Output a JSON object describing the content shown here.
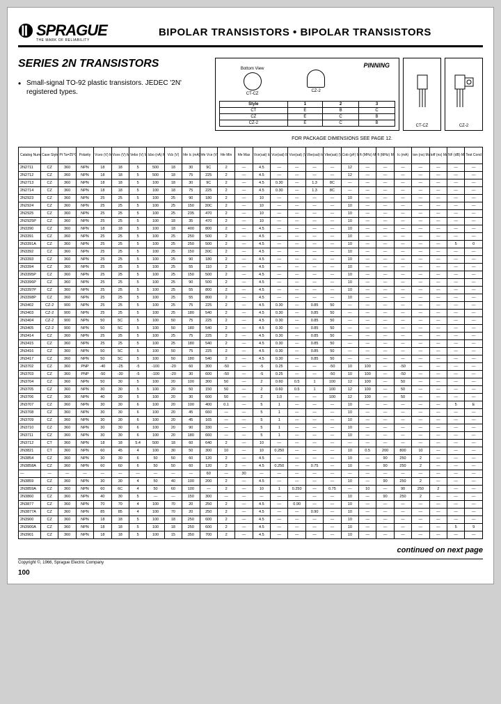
{
  "header": {
    "brand": "SPRAGUE",
    "tagline": "THE MARK OF RELIABILITY",
    "title": "BIPOLAR TRANSISTORS • BIPOLAR TRANSISTORS"
  },
  "series": {
    "title": "SERIES 2N TRANSISTORS",
    "description": "Small-signal TO-92 plastic transistors. JEDEC '2N' registered types."
  },
  "pinning": {
    "title": "PINNING",
    "bottom_view": "Bottom View",
    "styles": [
      "CT-CZ",
      "CZ-2"
    ],
    "table_header": [
      "Style",
      "1",
      "2",
      "3"
    ],
    "table_rows": [
      [
        "CT",
        "E",
        "B",
        "C"
      ],
      [
        "CZ",
        "E",
        "C",
        "B"
      ],
      [
        "CZ-2",
        "E",
        "C",
        "B"
      ]
    ],
    "pkg_labels": [
      "CT-CZ",
      "CZ-2"
    ]
  },
  "footnote": "FOR PACKAGE DIMENSIONS SEE PAGE 12.",
  "columns": [
    "Catalog Number",
    "Case Style",
    "Pt Ta=25°C (mW)",
    "Polarity",
    "Vceo (V) Min",
    "Vces (V) Min",
    "Vebo (V) Min",
    "Icbo (nA) Max",
    "Vcb (V)",
    "hfe Ic (mA)",
    "hfe Vce (V)",
    "hfe Min",
    "hfe Max",
    "Vce(sat) Ic (mA)",
    "Vce(sat) Ib (mA)",
    "Vce(sat) (V) Max",
    "Vbe(sat) Ic (mA)",
    "Vbe(sat) (V) Max",
    "Cob (pF) Max",
    "ft (MHz) Min",
    "ft (MHz) Max",
    "Ic (mA)",
    "ton (ns) Max",
    "toff (ns) Max",
    "NF (dB) Max",
    "Test Cond (letter)"
  ],
  "rows": [
    [
      "2N2711",
      "CZ",
      "360",
      "NPN",
      "18",
      "18",
      "5",
      "500",
      "18",
      "30",
      "9C",
      "2",
      "—",
      "4.5",
      "—",
      "—",
      "—",
      "—",
      "12",
      "—",
      "—",
      "—",
      "—",
      "—",
      "—",
      "—"
    ],
    [
      "2N2712",
      "CZ",
      "360",
      "NPN",
      "18",
      "18",
      "5",
      "500",
      "18",
      "75",
      "225",
      "2",
      "—",
      "4.5",
      "—",
      "—",
      "—",
      "—",
      "12",
      "—",
      "—",
      "—",
      "—",
      "—",
      "—",
      "—"
    ],
    [
      "2N2713",
      "CZ",
      "360",
      "NPN",
      "18",
      "18",
      "5",
      "100",
      "18",
      "30",
      "9C",
      "2",
      "—",
      "4.5",
      "0.30",
      "—",
      "1.3",
      "8C",
      "—",
      "—",
      "—",
      "—",
      "—",
      "—",
      "—",
      "—"
    ],
    [
      "2N2714",
      "CZ",
      "360",
      "NPN",
      "18",
      "18",
      "5",
      "100",
      "18",
      "75",
      "225",
      "2",
      "—",
      "4.5",
      "0.30",
      "—",
      "1.3",
      "8C",
      "—",
      "—",
      "—",
      "—",
      "—",
      "—",
      "—",
      "—"
    ],
    [
      "2N2923",
      "CZ",
      "360",
      "NPN",
      "25",
      "25",
      "5",
      "100",
      "25",
      "90",
      "180",
      "2",
      "—",
      "10",
      "—",
      "—",
      "—",
      "—",
      "10",
      "—",
      "—",
      "—",
      "—",
      "—",
      "—",
      "—"
    ],
    [
      "2N2924",
      "CZ",
      "360",
      "NPN",
      "25",
      "25",
      "5",
      "100",
      "25",
      "150",
      "30C",
      "2",
      "—",
      "10",
      "—",
      "—",
      "—",
      "—",
      "10",
      "—",
      "—",
      "—",
      "—",
      "—",
      "—",
      "—"
    ],
    [
      "2N2925",
      "CZ",
      "360",
      "NPN",
      "25",
      "25",
      "5",
      "100",
      "25",
      "235",
      "470",
      "2",
      "—",
      "10",
      "—",
      "—",
      "—",
      "—",
      "10",
      "—",
      "—",
      "—",
      "—",
      "—",
      "—",
      "—"
    ],
    [
      "2N2925P",
      "CZ",
      "360",
      "NPN",
      "25",
      "25",
      "5",
      "100",
      "18",
      "35",
      "470",
      "2",
      "—",
      "10",
      "—",
      "—",
      "—",
      "—",
      "10",
      "—",
      "—",
      "—",
      "—",
      "—",
      "—",
      "—"
    ],
    [
      "2N3390",
      "CZ",
      "360",
      "NPN",
      "18",
      "18",
      "5",
      "100",
      "18",
      "400",
      "800",
      "2",
      "—",
      "4.5",
      "—",
      "—",
      "—",
      "—",
      "10",
      "—",
      "—",
      "—",
      "—",
      "—",
      "—",
      "—"
    ],
    [
      "2N3391",
      "CZ",
      "360",
      "NPN",
      "25",
      "25",
      "5",
      "100",
      "25",
      "250",
      "500",
      "2",
      "—",
      "4.5",
      "—",
      "—",
      "—",
      "—",
      "10",
      "—",
      "—",
      "—",
      "—",
      "—",
      "—",
      "—"
    ],
    [
      "2N3391A",
      "CZ",
      "360",
      "NPN",
      "25",
      "25",
      "5",
      "100",
      "25",
      "250",
      "500",
      "2",
      "—",
      "4.5",
      "—",
      "—",
      "—",
      "—",
      "10",
      "—",
      "—",
      "—",
      "—",
      "—",
      "5",
      "0"
    ],
    [
      "2N3392",
      "CZ",
      "360",
      "NPN",
      "25",
      "25",
      "5",
      "100",
      "25",
      "150",
      "30C",
      "2",
      "—",
      "4.5",
      "—",
      "—",
      "—",
      "—",
      "10",
      "—",
      "—",
      "—",
      "—",
      "—",
      "—",
      "—"
    ],
    [
      "2N3393",
      "CZ",
      "360",
      "NPN",
      "25",
      "25",
      "5",
      "100",
      "25",
      "90",
      "180",
      "2",
      "—",
      "4.5",
      "—",
      "—",
      "—",
      "—",
      "10",
      "—",
      "—",
      "—",
      "—",
      "—",
      "—",
      "—"
    ],
    [
      "2N3394",
      "CZ",
      "360",
      "NPN",
      "25",
      "25",
      "5",
      "100",
      "25",
      "55",
      "110",
      "2",
      "—",
      "4.5",
      "—",
      "—",
      "—",
      "—",
      "10",
      "—",
      "—",
      "—",
      "—",
      "—",
      "—",
      "—"
    ],
    [
      "2N3395P",
      "CZ",
      "360",
      "NPN",
      "25",
      "25",
      "5",
      "100",
      "25",
      "150",
      "500",
      "2",
      "—",
      "4.5",
      "—",
      "—",
      "—",
      "—",
      "10",
      "—",
      "—",
      "—",
      "—",
      "—",
      "—",
      "—"
    ],
    [
      "2N3396P",
      "CZ",
      "360",
      "NPN",
      "25",
      "25",
      "5",
      "100",
      "25",
      "90",
      "500",
      "2",
      "—",
      "4.5",
      "—",
      "—",
      "—",
      "—",
      "10",
      "—",
      "—",
      "—",
      "—",
      "—",
      "—",
      "—"
    ],
    [
      "2N3397P",
      "CZ",
      "360",
      "NPN",
      "25",
      "25",
      "5",
      "100",
      "25",
      "55",
      "800",
      "2",
      "—",
      "4.5",
      "—",
      "—",
      "—",
      "—",
      "10",
      "—",
      "—",
      "—",
      "—",
      "—",
      "—",
      "—"
    ],
    [
      "2N3398P",
      "CZ",
      "360",
      "NPN",
      "25",
      "25",
      "5",
      "100",
      "25",
      "55",
      "800",
      "2",
      "—",
      "4.5",
      "—",
      "—",
      "—",
      "—",
      "10",
      "—",
      "—",
      "—",
      "—",
      "—",
      "—",
      "—"
    ],
    [
      "2N3402",
      "CZ-2",
      "900",
      "NPN",
      "25",
      "25",
      "5",
      "100",
      "25",
      "75",
      "225",
      "2",
      "—",
      "4.5",
      "0.30",
      "—",
      "0.85",
      "50",
      "—",
      "—",
      "—",
      "—",
      "—",
      "—",
      "—",
      "—"
    ],
    [
      "2N3403",
      "CZ-2",
      "900",
      "NPN",
      "25",
      "25",
      "5",
      "100",
      "25",
      "180",
      "540",
      "2",
      "—",
      "4.5",
      "0.30",
      "—",
      "0.85",
      "50",
      "—",
      "—",
      "—",
      "—",
      "—",
      "—",
      "—",
      "—"
    ],
    [
      "2N3404",
      "CZ-2",
      "900",
      "NPN",
      "50",
      "5C",
      "5",
      "100",
      "50",
      "75",
      "225",
      "2",
      "—",
      "4.5",
      "0.30",
      "—",
      "0.85",
      "50",
      "—",
      "—",
      "—",
      "—",
      "—",
      "—",
      "—",
      "—"
    ],
    [
      "2N3405",
      "CZ-2",
      "900",
      "NPN",
      "50",
      "5C",
      "5",
      "100",
      "50",
      "180",
      "540",
      "2",
      "—",
      "4.5",
      "0.30",
      "—",
      "0.85",
      "50",
      "—",
      "—",
      "—",
      "—",
      "—",
      "—",
      "—",
      "—"
    ],
    [
      "2N3414",
      "CZ",
      "360",
      "NPN",
      "25",
      "25",
      "5",
      "100",
      "25",
      "75",
      "225",
      "2",
      "—",
      "4.5",
      "0.30",
      "—",
      "0.85",
      "50",
      "—",
      "—",
      "—",
      "—",
      "—",
      "—",
      "—",
      "—"
    ],
    [
      "2N3415",
      "CZ",
      "360",
      "NPN",
      "25",
      "25",
      "5",
      "100",
      "25",
      "180",
      "540",
      "2",
      "—",
      "4.5",
      "0.30",
      "—",
      "0.85",
      "50",
      "—",
      "—",
      "—",
      "—",
      "—",
      "—",
      "—",
      "—"
    ],
    [
      "2N3416",
      "CZ",
      "360",
      "NPN",
      "50",
      "5C",
      "5",
      "100",
      "50",
      "75",
      "225",
      "2",
      "—",
      "4.5",
      "0.30",
      "—",
      "0.85",
      "50",
      "—",
      "—",
      "—",
      "—",
      "—",
      "—",
      "—",
      "—"
    ],
    [
      "2N3417",
      "CZ",
      "360",
      "NPN",
      "50",
      "5C",
      "5",
      "100",
      "50",
      "180",
      "540",
      "2",
      "—",
      "4.5",
      "0.30",
      "—",
      "0.85",
      "50",
      "—",
      "—",
      "—",
      "—",
      "—",
      "—",
      "—",
      "—"
    ],
    [
      "2N3702",
      "CZ",
      "360",
      "PNP",
      "-40",
      "-25",
      "-5",
      "-100",
      "-20",
      "60",
      "300",
      "-50",
      "—",
      "-5",
      "0.25",
      "—",
      "—",
      "-50",
      "10",
      "100",
      "—",
      "-50",
      "—",
      "—",
      "—",
      "—"
    ],
    [
      "2N3703",
      "CZ",
      "360",
      "PNP",
      "-50",
      "-30",
      "-5",
      "-100",
      "-20",
      "30",
      "600",
      "-50",
      "—",
      "-5",
      "0.25",
      "—",
      "—",
      "-50",
      "10",
      "100",
      "—",
      "-50",
      "—",
      "—",
      "—",
      "—"
    ],
    [
      "2N3704",
      "CZ",
      "360",
      "NPN",
      "50",
      "30",
      "5",
      "100",
      "20",
      "100",
      "300",
      "50",
      "—",
      "2",
      "0.60",
      "0.5",
      "1",
      "100",
      "12",
      "100",
      "—",
      "50",
      "—",
      "—",
      "—",
      "—"
    ],
    [
      "2N3705",
      "CZ",
      "360",
      "NPN",
      "30",
      "30",
      "5",
      "100",
      "20",
      "50",
      "150",
      "50",
      "—",
      "2",
      "0.60",
      "0.5",
      "1",
      "100",
      "12",
      "100",
      "—",
      "50",
      "—",
      "—",
      "—",
      "—"
    ],
    [
      "2N3706",
      "CZ",
      "360",
      "NPN",
      "40",
      "20",
      "5",
      "100",
      "20",
      "30",
      "600",
      "50",
      "—",
      "2",
      "1.0",
      "—",
      "—",
      "100",
      "12",
      "100",
      "—",
      "50",
      "—",
      "—",
      "—",
      "—"
    ],
    [
      "2N3707",
      "CZ",
      "360",
      "NPN",
      "30",
      "30",
      "6",
      "100",
      "20",
      "100",
      "400",
      "0.1",
      "—",
      "5",
      "1",
      "—",
      "—",
      "—",
      "10",
      "—",
      "—",
      "—",
      "—",
      "—",
      "5",
      "E"
    ],
    [
      "2N3708",
      "CZ",
      "360",
      "NPN",
      "30",
      "30",
      "6",
      "100",
      "20",
      "45",
      "660",
      "—",
      "—",
      "5",
      "1",
      "—",
      "—",
      "—",
      "10",
      "—",
      "—",
      "—",
      "—",
      "—",
      "—",
      "—"
    ],
    [
      "2N3709",
      "CZ",
      "360",
      "NPN",
      "30",
      "30",
      "6",
      "100",
      "20",
      "45",
      "165",
      "—",
      "—",
      "5",
      "1",
      "—",
      "—",
      "—",
      "10",
      "—",
      "—",
      "—",
      "—",
      "—",
      "—",
      "—"
    ],
    [
      "2N3710",
      "CZ",
      "360",
      "NPN",
      "30",
      "30",
      "6",
      "100",
      "20",
      "90",
      "330",
      "—",
      "—",
      "5",
      "1",
      "—",
      "—",
      "—",
      "10",
      "—",
      "—",
      "—",
      "—",
      "—",
      "—",
      "—"
    ],
    [
      "2N3711",
      "CZ",
      "360",
      "NPN",
      "30",
      "30",
      "6",
      "100",
      "20",
      "180",
      "660",
      "—",
      "—",
      "5",
      "1",
      "—",
      "—",
      "—",
      "10",
      "—",
      "—",
      "—",
      "—",
      "—",
      "—",
      "—"
    ],
    [
      "2N3712",
      "CT",
      "360",
      "NPN",
      "18",
      "18",
      "5.4",
      "500",
      "18",
      "60",
      "640",
      "2",
      "—",
      "10",
      "—",
      "—",
      "—",
      "—",
      "—",
      "—",
      "—",
      "—",
      "—",
      "—",
      "—",
      "—"
    ],
    [
      "2N3821",
      "CT",
      "360",
      "NPN",
      "60",
      "45",
      "4",
      "100",
      "30",
      "50",
      "300",
      "10",
      "—",
      "10",
      "0.250",
      "—",
      "—",
      "—",
      "10",
      "0.5",
      "200",
      "800",
      "10",
      "—",
      "—",
      "—"
    ],
    [
      "2N3854",
      "CZ",
      "360",
      "NPN",
      "30",
      "30",
      "6",
      "50",
      "50",
      "60",
      "120",
      "2",
      "—",
      "4.5",
      "—",
      "—",
      "—",
      "—",
      "10",
      "—",
      "90",
      "250",
      "2",
      "—",
      "—",
      "—"
    ],
    [
      "2N3858A",
      "CZ",
      "360",
      "NPN",
      "60",
      "60",
      "6",
      "50",
      "50",
      "60",
      "120",
      "2",
      "—",
      "4.5",
      "0.250",
      "—",
      "0.75",
      "—",
      "10",
      "—",
      "90",
      "250",
      "2",
      "—",
      "—",
      "—"
    ],
    [
      "",
      "",
      "",
      "",
      "",
      "",
      "",
      "",
      "",
      "",
      "60",
      "—",
      "30",
      "",
      "",
      "",
      "",
      "",
      "",
      "",
      "",
      "",
      "",
      "",
      "",
      ""
    ],
    [
      "2N3859",
      "CZ",
      "360",
      "NPN",
      "30",
      "30",
      "4",
      "50",
      "40",
      "100",
      "200",
      "2",
      "—",
      "4.5",
      "—",
      "—",
      "—",
      "—",
      "10",
      "—",
      "90",
      "250",
      "2",
      "—",
      "—",
      "—"
    ],
    [
      "2N3859A",
      "CZ",
      "360",
      "NPN",
      "60",
      "6C",
      "4",
      "50",
      "60",
      "100",
      "—",
      "2",
      "—",
      "10",
      "1",
      "0.250",
      "—",
      "0.75",
      "—",
      "10",
      "—",
      "90",
      "250",
      "2",
      "—",
      "—"
    ],
    [
      "2N3860",
      "CZ",
      "360",
      "NPN",
      "40",
      "30",
      "5",
      "—",
      "—",
      "150",
      "300",
      "—",
      "—",
      "—",
      "—",
      "—",
      "—",
      "—",
      "10",
      "—",
      "90",
      "250",
      "2",
      "—",
      "—",
      "—"
    ],
    [
      "2N3877",
      "CZ",
      "360",
      "NPN",
      "70",
      "70",
      "4",
      "100",
      "70",
      "20",
      "250",
      "2",
      "—",
      "4.5",
      "—",
      "0.90",
      "—",
      "—",
      "10",
      "—",
      "—",
      "—",
      "—",
      "—",
      "—",
      "—"
    ],
    [
      "2N3877A",
      "CZ",
      "360",
      "NPN",
      "85",
      "85",
      "4",
      "100",
      "70",
      "20",
      "250",
      "2",
      "—",
      "4.5",
      "—",
      "—",
      "0.90",
      "—",
      "10",
      "—",
      "—",
      "—",
      "—",
      "—",
      "—",
      "—"
    ],
    [
      "2N3900",
      "CZ",
      "360",
      "NPN",
      "18",
      "18",
      "5",
      "100",
      "18",
      "250",
      "600",
      "2",
      "—",
      "4.5",
      "—",
      "—",
      "—",
      "—",
      "10",
      "—",
      "—",
      "—",
      "—",
      "—",
      "—",
      "—"
    ],
    [
      "2N3900A",
      "CZ",
      "360",
      "NPN",
      "18",
      "18",
      "5",
      "100",
      "18",
      "250",
      "600",
      "2",
      "—",
      "4.5",
      "—",
      "—",
      "—",
      "—",
      "10",
      "—",
      "—",
      "—",
      "—",
      "—",
      "5",
      "9"
    ],
    [
      "2N3901",
      "CZ",
      "360",
      "NPN",
      "18",
      "18",
      "5",
      "100",
      "15",
      "350",
      "700",
      "2",
      "—",
      "4.5",
      "—",
      "—",
      "—",
      "—",
      "10",
      "—",
      "—",
      "—",
      "—",
      "—",
      "—",
      "—"
    ]
  ],
  "continued": "continued on next page",
  "copyright": "Copyright ©, 1966, Sprague Electric Company",
  "page_num": "100",
  "colors": {
    "page_bg": "#ffffff",
    "body_bg": "#d0d0d0",
    "border": "#000000",
    "text": "#000000"
  }
}
